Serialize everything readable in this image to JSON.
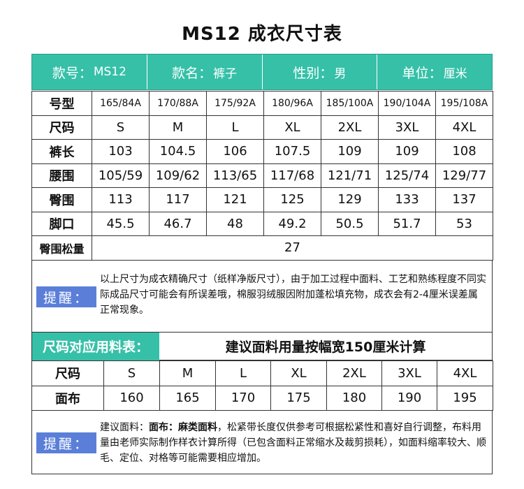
{
  "title": "MS12  成衣尺寸表",
  "info": {
    "style_label": "款号：",
    "style_value": "MS12",
    "name_label": "款名：",
    "name_value": "裤子",
    "gender_label": "性别：",
    "gender_value": "男",
    "unit_label": "单位：",
    "unit_value": "厘米"
  },
  "size_table": {
    "rows": [
      {
        "label": "号型",
        "cells": [
          "165/84A",
          "170/88A",
          "175/92A",
          "180/96A",
          "185/100A",
          "190/104A",
          "195/108A"
        ]
      },
      {
        "label": "尺码",
        "cells": [
          "S",
          "M",
          "L",
          "XL",
          "2XL",
          "3XL",
          "4XL"
        ]
      },
      {
        "label": "裤长",
        "cells": [
          "103",
          "104.5",
          "106",
          "107.5",
          "109",
          "109",
          "108"
        ]
      },
      {
        "label": "腰围",
        "cells": [
          "105/59",
          "109/62",
          "113/65",
          "117/68",
          "121/71",
          "125/74",
          "129/77"
        ]
      },
      {
        "label": "臀围",
        "cells": [
          "113",
          "117",
          "121",
          "125",
          "129",
          "133",
          "137"
        ]
      },
      {
        "label": "脚口",
        "cells": [
          "45.5",
          "46.7",
          "48",
          "49.2",
          "50.5",
          "51.7",
          "53"
        ]
      }
    ],
    "ease_label": "臀围松量",
    "ease_value": "27"
  },
  "note1": {
    "badge": "提醒：",
    "text": "以上尺寸为成衣精确尺寸（纸样净版尺寸），由于加工过程中面料、工艺和熟练程度不同实际成品尺寸可能会有所误差哦，棉服羽绒服因附加蓬松填充物，成衣会有2-4厘米误差属正常现象。"
  },
  "fabric": {
    "tag": "尺码对应用料表：",
    "note": "建议面料用量按幅宽150厘米计算",
    "size_label": "尺码",
    "sizes": [
      "S",
      "M",
      "L",
      "XL",
      "2XL",
      "3XL",
      "4XL"
    ],
    "amount_label": "面布",
    "amounts": [
      "160",
      "165",
      "170",
      "175",
      "180",
      "190",
      "195"
    ]
  },
  "note2": {
    "badge": "提醒：",
    "prefix": "建议面料：",
    "bold1": "面布：",
    "bold2": "麻类面料",
    "text": "，松紧带长度仅供参考可根据松紧性和喜好自行调整，布料用量由老师实际制作样衣计算所得（已包含面料正常缩水及裁剪损耗），如面料缩率较大、顺毛、定位、对格等可能需要相应增加。"
  },
  "colors": {
    "accent": "#36c0a8",
    "badge": "#5b7fd8"
  }
}
